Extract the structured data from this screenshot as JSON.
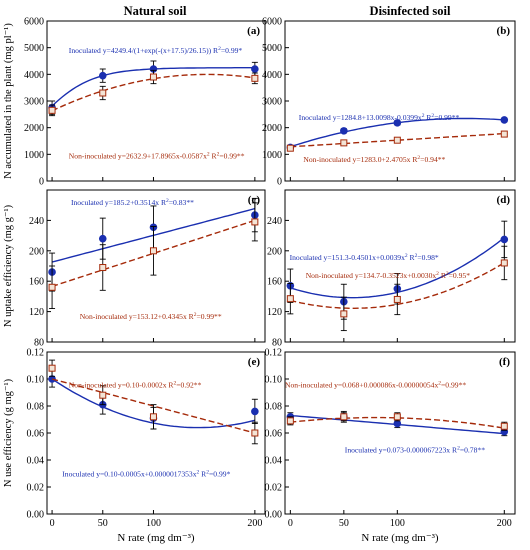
{
  "figure": {
    "col_titles": [
      "Natural soil",
      "Disinfected soil"
    ],
    "xlabel": "N rate (mg dm⁻³)"
  },
  "colors": {
    "inoculated": "#1a2fb0",
    "non_inoculated": "#a52a0a"
  },
  "chart_data": [
    {
      "type": "line",
      "panel": "(a)",
      "ylabel": "N accumulated in the plant (mg pl⁻¹)",
      "ylim": [
        0,
        6000
      ],
      "yticks": [
        0,
        1000,
        2000,
        3000,
        4000,
        5000,
        6000
      ],
      "x": [
        0,
        50,
        100,
        200
      ],
      "series": [
        {
          "name": "Inoculated",
          "marker": "circle",
          "values": [
            2750,
            3950,
            4200,
            4200
          ],
          "err": [
            250,
            250,
            300,
            250
          ],
          "fit": {
            "kind": "sigmoid",
            "a": 4249.4,
            "c": 17.5,
            "s": 26.15
          }
        },
        {
          "name": "Non-inoculated",
          "marker": "square",
          "values": [
            2650,
            3300,
            3900,
            3850
          ],
          "err": [
            200,
            250,
            250,
            200
          ],
          "fit": {
            "kind": "poly",
            "coef": [
              2632.9,
              17.8965,
              -0.0587
            ]
          }
        }
      ],
      "annotations": [
        {
          "series": "Inoculated",
          "eq": "Inoculated y=4249.4/(1+exp(-(x+17.5)/26.15)) R",
          "r2": "=0.99*"
        },
        {
          "series": "Non-inoculated",
          "eq": "Non-inoculated y=2632.9+17.8965x-0.0587x",
          "r2": " R",
          "r2v": "=0.99**"
        }
      ]
    },
    {
      "type": "line",
      "panel": "(b)",
      "ylabel": "",
      "ylim": [
        0,
        6000
      ],
      "yticks": [
        0,
        1000,
        2000,
        3000,
        4000,
        5000,
        6000
      ],
      "x": [
        0,
        50,
        100,
        200
      ],
      "series": [
        {
          "name": "Inoculated",
          "marker": "circle",
          "values": [
            1260,
            1880,
            2180,
            2290
          ],
          "err": [
            60,
            80,
            80,
            70
          ],
          "fit": {
            "kind": "poly",
            "coef": [
              1284.8,
              13.0098,
              -0.0399
            ]
          }
        },
        {
          "name": "Non-inoculated",
          "marker": "square",
          "values": [
            1230,
            1430,
            1530,
            1760
          ],
          "err": [
            50,
            60,
            60,
            60
          ],
          "fit": {
            "kind": "poly",
            "coef": [
              1283.0,
              2.4705,
              0
            ]
          }
        }
      ],
      "annotations": [
        {
          "series": "Inoculated",
          "eq": "Inoculated y=1284.8+13.0098x-0.0399x",
          "r2": " R",
          "r2v": "=0.99**"
        },
        {
          "series": "Non-inoculated",
          "eq": "Non-inoculated y=1283.0+2.4705x R",
          "r2": "=0.94**"
        }
      ]
    },
    {
      "type": "line",
      "panel": "(c)",
      "ylabel": "N uptake efficiency (mg g⁻¹)",
      "ylim": [
        80,
        280
      ],
      "yticks": [
        80,
        120,
        160,
        200,
        240
      ],
      "x": [
        0,
        50,
        100,
        200
      ],
      "series": [
        {
          "name": "Inoculated",
          "marker": "circle",
          "values": [
            172,
            216,
            231,
            247
          ],
          "err": [
            25,
            27,
            28,
            22
          ],
          "fit": {
            "kind": "poly",
            "coef": [
              185.2,
              0.3514,
              0
            ]
          }
        },
        {
          "name": "Non-inoculated",
          "marker": "square",
          "values": [
            152,
            178,
            200,
            238
          ],
          "err": [
            28,
            30,
            32,
            25
          ],
          "fit": {
            "kind": "poly",
            "coef": [
              153.12,
              0.4345,
              0
            ]
          }
        }
      ],
      "annotations": [
        {
          "series": "Inoculated",
          "eq": "Inoculated y=185.2+0.3514x R",
          "r2": "=0.83**"
        },
        {
          "series": "Non-inoculated",
          "eq": "Non-inoculated y=153.12+0.4345x R",
          "r2": "=0.99**"
        }
      ]
    },
    {
      "type": "line",
      "panel": "(d)",
      "ylabel": "",
      "ylim": [
        80,
        280
      ],
      "yticks": [
        80,
        120,
        160,
        200,
        240
      ],
      "x": [
        0,
        50,
        100,
        200
      ],
      "series": [
        {
          "name": "Inoculated",
          "marker": "circle",
          "values": [
            154,
            133,
            150,
            215
          ],
          "err": [
            22,
            23,
            20,
            24
          ],
          "fit": {
            "kind": "poly",
            "coef": [
              151.3,
              -0.4501,
              0.0039
            ]
          }
        },
        {
          "name": "Non-inoculated",
          "marker": "square",
          "values": [
            137,
            117,
            136,
            184
          ],
          "err": [
            20,
            22,
            20,
            22
          ],
          "fit": {
            "kind": "poly",
            "coef": [
              134.7,
              -0.3523,
              0.003
            ]
          }
        }
      ],
      "annotations": [
        {
          "series": "Inoculated",
          "eq": "Inoculated y=151.3-0.4501x+0.0039x",
          "r2": " R",
          "r2v": "=0.98*"
        },
        {
          "series": "Non-inoculated",
          "eq": "Non-inoculated y=134.7-0.3523x+0.0030x",
          "r2": " R",
          "r2v": "=0.95*"
        }
      ]
    },
    {
      "type": "line",
      "panel": "(e)",
      "ylabel": "N use efficiency (g mg⁻¹)",
      "ylim": [
        0,
        0.12
      ],
      "yticks": [
        0,
        0.02,
        0.04,
        0.06,
        0.08,
        0.1,
        0.12
      ],
      "x": [
        0,
        50,
        100,
        200
      ],
      "series": [
        {
          "name": "Inoculated",
          "marker": "circle",
          "values": [
            0.1,
            0.081,
            0.071,
            0.076
          ],
          "err": [
            0.006,
            0.007,
            0.008,
            0.009
          ],
          "fit": {
            "kind": "poly",
            "coef": [
              0.1,
              -0.0005,
              1.7353e-06
            ]
          }
        },
        {
          "name": "Non-inoculated",
          "marker": "square",
          "values": [
            0.108,
            0.088,
            0.072,
            0.06
          ],
          "err": [
            0.006,
            0.007,
            0.009,
            0.008
          ],
          "fit": {
            "kind": "poly",
            "coef": [
              0.1,
              -0.0002,
              0
            ]
          }
        }
      ],
      "annotations": [
        {
          "series": "Non-inoculated",
          "eq": "Non-inoculated y=0.10-0.0002x R",
          "r2": "=0.92**"
        },
        {
          "series": "Inoculated",
          "eq": "Inoculated y=0.10-0.0005x+0.0000017353x",
          "r2": " R",
          "r2v": "=0.99*"
        }
      ]
    },
    {
      "type": "line",
      "panel": "(f)",
      "ylabel": "",
      "ylim": [
        0,
        0.12
      ],
      "yticks": [
        0,
        0.02,
        0.04,
        0.06,
        0.08,
        0.1,
        0.12
      ],
      "x": [
        0,
        50,
        100,
        200
      ],
      "series": [
        {
          "name": "Inoculated",
          "marker": "circle",
          "values": [
            0.072,
            0.072,
            0.067,
            0.061
          ],
          "err": [
            0.003,
            0.004,
            0.003,
            0.003
          ],
          "fit": {
            "kind": "poly",
            "coef": [
              0.073,
              -6.7223e-05,
              0
            ]
          }
        },
        {
          "name": "Non-inoculated",
          "marker": "square",
          "values": [
            0.069,
            0.072,
            0.072,
            0.065
          ],
          "err": [
            0.003,
            0.003,
            0.003,
            0.003
          ],
          "fit": {
            "kind": "poly",
            "coef": [
              0.068,
              8.6e-05,
              -5.4e-07
            ]
          }
        }
      ],
      "annotations": [
        {
          "series": "Non-inoculated",
          "eq": "Non-inoculated y=0.068+0.000086x-0.00000054x",
          "r2": "=0.99**"
        },
        {
          "series": "Inoculated",
          "eq": "Inoculated y=0.073-0.000067223x R",
          "r2": "=0.78**"
        }
      ]
    }
  ]
}
